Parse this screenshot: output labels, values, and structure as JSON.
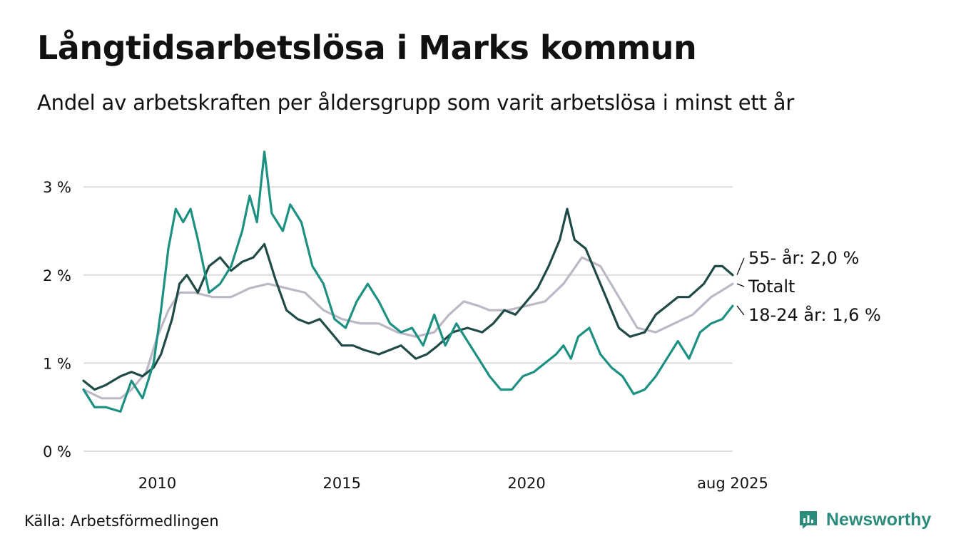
{
  "title": "Långtidsarbetslösa i Marks kommun",
  "subtitle": "Andel av arbetskraften per åldersgrupp som varit arbetslösa i minst ett år",
  "source": "Källa: Arbetsförmedlingen",
  "brand": "Newsworthy",
  "colors": {
    "age55": "#1f4a45",
    "total": "#bdb7c6",
    "age18_24": "#1c9181",
    "grid": "#dddddd",
    "brand": "#2c8c7c"
  },
  "chart_data": {
    "type": "line",
    "title": "Långtidsarbetslösa i Marks kommun",
    "xlabel": "",
    "ylabel": "",
    "xlim": [
      2008.0,
      2025.583
    ],
    "ylim": [
      0,
      3.5
    ],
    "grid": true,
    "y_ticks": [
      {
        "value": 0,
        "label": "0 %"
      },
      {
        "value": 1,
        "label": "1 %"
      },
      {
        "value": 2,
        "label": "2 %"
      },
      {
        "value": 3,
        "label": "3 %"
      }
    ],
    "x_ticks": [
      {
        "value": 2010,
        "label": "2010"
      },
      {
        "value": 2015,
        "label": "2015"
      },
      {
        "value": 2020,
        "label": "2020"
      },
      {
        "value": 2025.583,
        "label": "aug 2025"
      }
    ],
    "series": [
      {
        "name": "Totalt",
        "label": "Totalt",
        "color": "#bdb7c6",
        "x": [
          2008.0,
          2008.5,
          2009.0,
          2009.3,
          2009.7,
          2010.0,
          2010.3,
          2010.6,
          2011.0,
          2011.5,
          2012.0,
          2012.5,
          2013.0,
          2013.5,
          2014.0,
          2014.5,
          2015.0,
          2015.5,
          2016.0,
          2016.5,
          2017.0,
          2017.5,
          2017.9,
          2018.3,
          2018.7,
          2019.0,
          2019.5,
          2020.0,
          2020.5,
          2021.0,
          2021.5,
          2022.0,
          2022.5,
          2023.0,
          2023.5,
          2024.0,
          2024.5,
          2025.0,
          2025.583
        ],
        "y": [
          0.7,
          0.6,
          0.6,
          0.7,
          0.9,
          1.3,
          1.6,
          1.8,
          1.8,
          1.75,
          1.75,
          1.85,
          1.9,
          1.85,
          1.8,
          1.6,
          1.5,
          1.45,
          1.45,
          1.35,
          1.3,
          1.35,
          1.55,
          1.7,
          1.65,
          1.6,
          1.6,
          1.65,
          1.7,
          1.9,
          2.2,
          2.1,
          1.75,
          1.4,
          1.35,
          1.45,
          1.55,
          1.75,
          1.9
        ]
      },
      {
        "name": "55- år",
        "label": "55- år: 2,0 %",
        "color": "#1f4a45",
        "x": [
          2008.0,
          2008.3,
          2008.6,
          2009.0,
          2009.3,
          2009.6,
          2009.9,
          2010.1,
          2010.4,
          2010.6,
          2010.8,
          2011.1,
          2011.4,
          2011.7,
          2012.0,
          2012.3,
          2012.6,
          2012.9,
          2013.2,
          2013.5,
          2013.8,
          2014.1,
          2014.4,
          2014.7,
          2015.0,
          2015.3,
          2015.6,
          2016.0,
          2016.3,
          2016.6,
          2017.0,
          2017.3,
          2017.6,
          2018.0,
          2018.4,
          2018.8,
          2019.1,
          2019.4,
          2019.7,
          2020.0,
          2020.3,
          2020.6,
          2020.9,
          2021.1,
          2021.3,
          2021.6,
          2021.9,
          2022.2,
          2022.5,
          2022.8,
          2023.2,
          2023.5,
          2023.8,
          2024.1,
          2024.4,
          2024.8,
          2025.1,
          2025.3,
          2025.583
        ],
        "y": [
          0.8,
          0.7,
          0.75,
          0.85,
          0.9,
          0.85,
          0.95,
          1.1,
          1.5,
          1.9,
          2.0,
          1.8,
          2.1,
          2.2,
          2.05,
          2.15,
          2.2,
          2.35,
          1.95,
          1.6,
          1.5,
          1.45,
          1.5,
          1.35,
          1.2,
          1.2,
          1.15,
          1.1,
          1.15,
          1.2,
          1.05,
          1.1,
          1.2,
          1.35,
          1.4,
          1.35,
          1.45,
          1.6,
          1.55,
          1.7,
          1.85,
          2.1,
          2.4,
          2.75,
          2.4,
          2.3,
          2.0,
          1.7,
          1.4,
          1.3,
          1.35,
          1.55,
          1.65,
          1.75,
          1.75,
          1.9,
          2.1,
          2.1,
          2.0
        ]
      },
      {
        "name": "18-24 år",
        "label": "18-24 år: 1,6 %",
        "color": "#1c9181",
        "x": [
          2008.0,
          2008.3,
          2008.6,
          2009.0,
          2009.3,
          2009.6,
          2009.9,
          2010.1,
          2010.3,
          2010.5,
          2010.7,
          2010.9,
          2011.1,
          2011.4,
          2011.7,
          2012.0,
          2012.3,
          2012.5,
          2012.7,
          2012.9,
          2013.1,
          2013.4,
          2013.6,
          2013.9,
          2014.2,
          2014.5,
          2014.8,
          2015.1,
          2015.4,
          2015.7,
          2016.0,
          2016.3,
          2016.6,
          2016.9,
          2017.2,
          2017.5,
          2017.8,
          2018.1,
          2018.4,
          2018.7,
          2019.0,
          2019.3,
          2019.6,
          2019.9,
          2020.2,
          2020.5,
          2020.8,
          2021.0,
          2021.2,
          2021.4,
          2021.7,
          2022.0,
          2022.3,
          2022.6,
          2022.9,
          2023.2,
          2023.5,
          2023.8,
          2024.1,
          2024.4,
          2024.7,
          2025.0,
          2025.3,
          2025.583
        ],
        "y": [
          0.7,
          0.5,
          0.5,
          0.45,
          0.8,
          0.6,
          1.0,
          1.6,
          2.3,
          2.75,
          2.6,
          2.75,
          2.4,
          1.8,
          1.9,
          2.1,
          2.5,
          2.9,
          2.6,
          3.4,
          2.7,
          2.5,
          2.8,
          2.6,
          2.1,
          1.9,
          1.5,
          1.4,
          1.7,
          1.9,
          1.7,
          1.45,
          1.35,
          1.4,
          1.2,
          1.55,
          1.2,
          1.45,
          1.25,
          1.05,
          0.85,
          0.7,
          0.7,
          0.85,
          0.9,
          1.0,
          1.1,
          1.2,
          1.05,
          1.3,
          1.4,
          1.1,
          0.95,
          0.85,
          0.65,
          0.7,
          0.85,
          1.05,
          1.25,
          1.05,
          1.35,
          1.45,
          1.5,
          1.65
        ]
      }
    ]
  }
}
